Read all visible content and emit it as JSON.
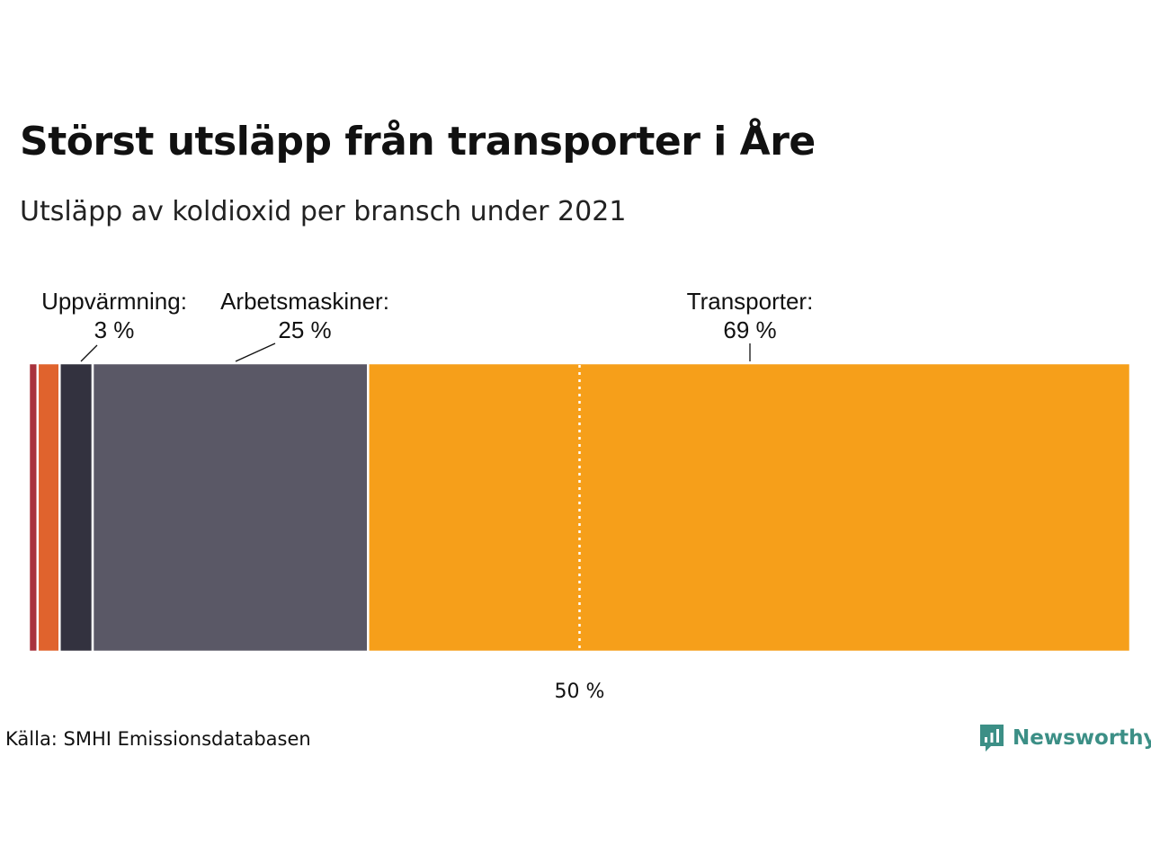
{
  "header": {
    "title": "Störst utsläpp från transporter i Åre",
    "subtitle": "Utsläpp av koldioxid per bransch under 2021"
  },
  "footer": {
    "source": "Källa: SMHI Emissionsdatabasen",
    "logo_text": "Newsworthy"
  },
  "chart_data": {
    "type": "bar",
    "orientation": "horizontal-stacked",
    "xlim": [
      0,
      100
    ],
    "segments": [
      {
        "value": 0.8,
        "color": "#a8323c"
      },
      {
        "value": 2.0,
        "color": "#e0632d"
      },
      {
        "value": 3.0,
        "name": "Uppvärmning:",
        "label": "3 %",
        "color": "#33323f"
      },
      {
        "value": 25.0,
        "name": "Arbetsmaskiner:",
        "label": "25 %",
        "color": "#5a5866"
      },
      {
        "value": 69.2,
        "name": "Transporter:",
        "label": "69 %",
        "color": "#f69f1a"
      }
    ],
    "reference_line": {
      "value": 50,
      "label": "50 %"
    }
  }
}
